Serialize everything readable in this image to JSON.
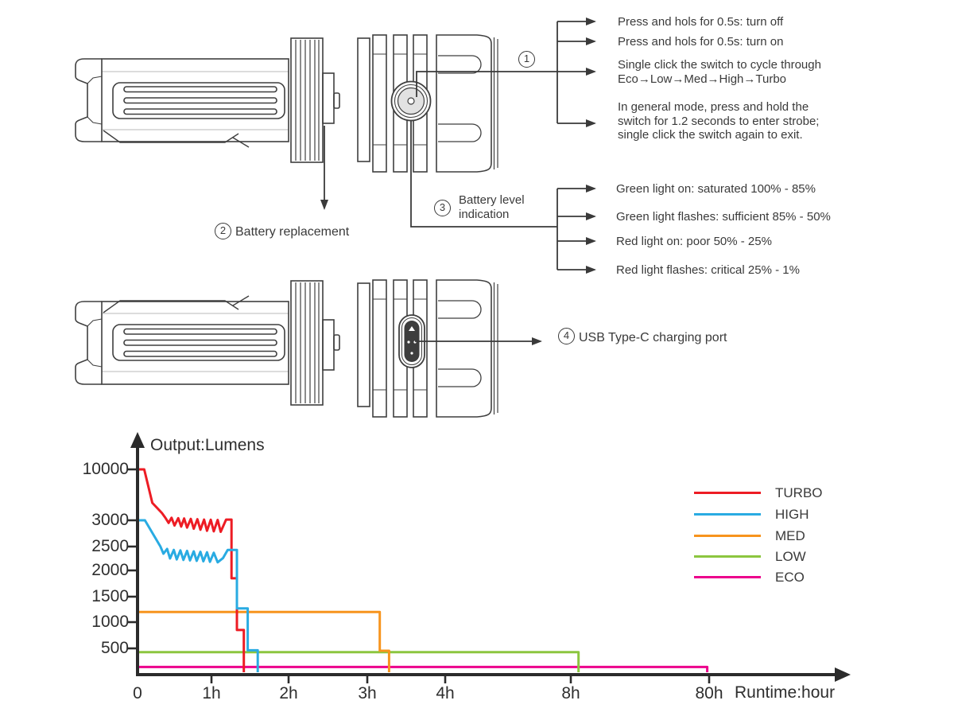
{
  "callouts": {
    "switch": {
      "num": "1",
      "items": [
        {
          "text": "Press and hols for 0.5s: turn off"
        },
        {
          "text": "Press and hols for 0.5s: turn on"
        },
        {
          "text": "Single click the switch to cycle through\nEco→Low→Med→High→Turbo"
        },
        {
          "text": "In general mode, press and hold the\nswitch for 1.2 seconds to enter strobe;\nsingle click the switch again to exit."
        }
      ]
    },
    "battery_replacement": {
      "num": "2",
      "label": "Battery replacement"
    },
    "battery_level": {
      "num": "3",
      "label": "Battery level\nindication",
      "items": [
        {
          "text": "Green light on: saturated 100% - 85%"
        },
        {
          "text": "Green light flashes: sufficient 85% - 50%"
        },
        {
          "text": "Red light on: poor 50% - 25%"
        },
        {
          "text": "Red light flashes: critical 25% - 1%"
        }
      ]
    },
    "usb": {
      "num": "4",
      "label": "USB Type-C charging port"
    }
  },
  "chart_data": {
    "type": "line",
    "title": "",
    "ylabel": "Output:Lumens",
    "xlabel": "Runtime:hour",
    "x_tick_labels": [
      "0",
      "1h",
      "2h",
      "3h",
      "4h",
      "8h",
      "80h"
    ],
    "y_tick_labels": [
      "10000",
      "3000",
      "2500",
      "2000",
      "1500",
      "1000",
      "500"
    ],
    "x_unit": "hours",
    "y_unit": "lumens",
    "axis_note": "schematic non-linear axes",
    "grid": false,
    "legend_position": "right",
    "series": [
      {
        "name": "TURBO",
        "color": "#ed1c24",
        "points": [
          [
            0,
            10000
          ],
          [
            0.09,
            10000
          ],
          [
            0.2,
            5400
          ],
          [
            0.33,
            4000
          ],
          [
            0.38,
            3300
          ],
          [
            0.42,
            2950
          ],
          [
            0.46,
            3350
          ],
          [
            0.5,
            2900
          ],
          [
            0.55,
            3300
          ],
          [
            0.59,
            2880
          ],
          [
            0.63,
            3250
          ],
          [
            0.67,
            2860
          ],
          [
            0.72,
            3200
          ],
          [
            0.76,
            2840
          ],
          [
            0.81,
            3150
          ],
          [
            0.85,
            2820
          ],
          [
            0.9,
            3100
          ],
          [
            0.94,
            2800
          ],
          [
            0.99,
            3080
          ],
          [
            1.03,
            2790
          ],
          [
            1.08,
            3060
          ],
          [
            1.12,
            2780
          ],
          [
            1.19,
            3100
          ],
          [
            1.26,
            3100
          ],
          [
            1.26,
            1850
          ],
          [
            1.33,
            1850
          ],
          [
            1.33,
            850
          ],
          [
            1.42,
            850
          ],
          [
            1.42,
            0
          ]
        ]
      },
      {
        "name": "HIGH",
        "color": "#29abe2",
        "points": [
          [
            0,
            3000
          ],
          [
            0.1,
            3000
          ],
          [
            0.31,
            2500
          ],
          [
            0.35,
            2350
          ],
          [
            0.4,
            2450
          ],
          [
            0.44,
            2250
          ],
          [
            0.49,
            2430
          ],
          [
            0.53,
            2230
          ],
          [
            0.58,
            2420
          ],
          [
            0.62,
            2220
          ],
          [
            0.67,
            2410
          ],
          [
            0.71,
            2210
          ],
          [
            0.76,
            2400
          ],
          [
            0.8,
            2200
          ],
          [
            0.85,
            2390
          ],
          [
            0.89,
            2190
          ],
          [
            0.94,
            2380
          ],
          [
            0.98,
            2180
          ],
          [
            1.03,
            2370
          ],
          [
            1.08,
            2170
          ],
          [
            1.15,
            2260
          ],
          [
            1.21,
            2430
          ],
          [
            1.33,
            2430
          ],
          [
            1.33,
            1270
          ],
          [
            1.47,
            1270
          ],
          [
            1.47,
            460
          ],
          [
            1.6,
            460
          ],
          [
            1.6,
            0
          ]
        ]
      },
      {
        "name": "MED",
        "color": "#f7941d",
        "points": [
          [
            0,
            1200
          ],
          [
            3.16,
            1200
          ],
          [
            3.16,
            450
          ],
          [
            3.28,
            450
          ],
          [
            3.28,
            0
          ]
        ]
      },
      {
        "name": "LOW",
        "color": "#8cc63f",
        "points": [
          [
            0,
            420
          ],
          [
            12,
            420
          ],
          [
            12,
            0
          ]
        ]
      },
      {
        "name": "ECO",
        "color": "#ec008c",
        "points": [
          [
            0,
            110
          ],
          [
            79,
            110
          ],
          [
            79,
            0
          ]
        ]
      }
    ]
  }
}
